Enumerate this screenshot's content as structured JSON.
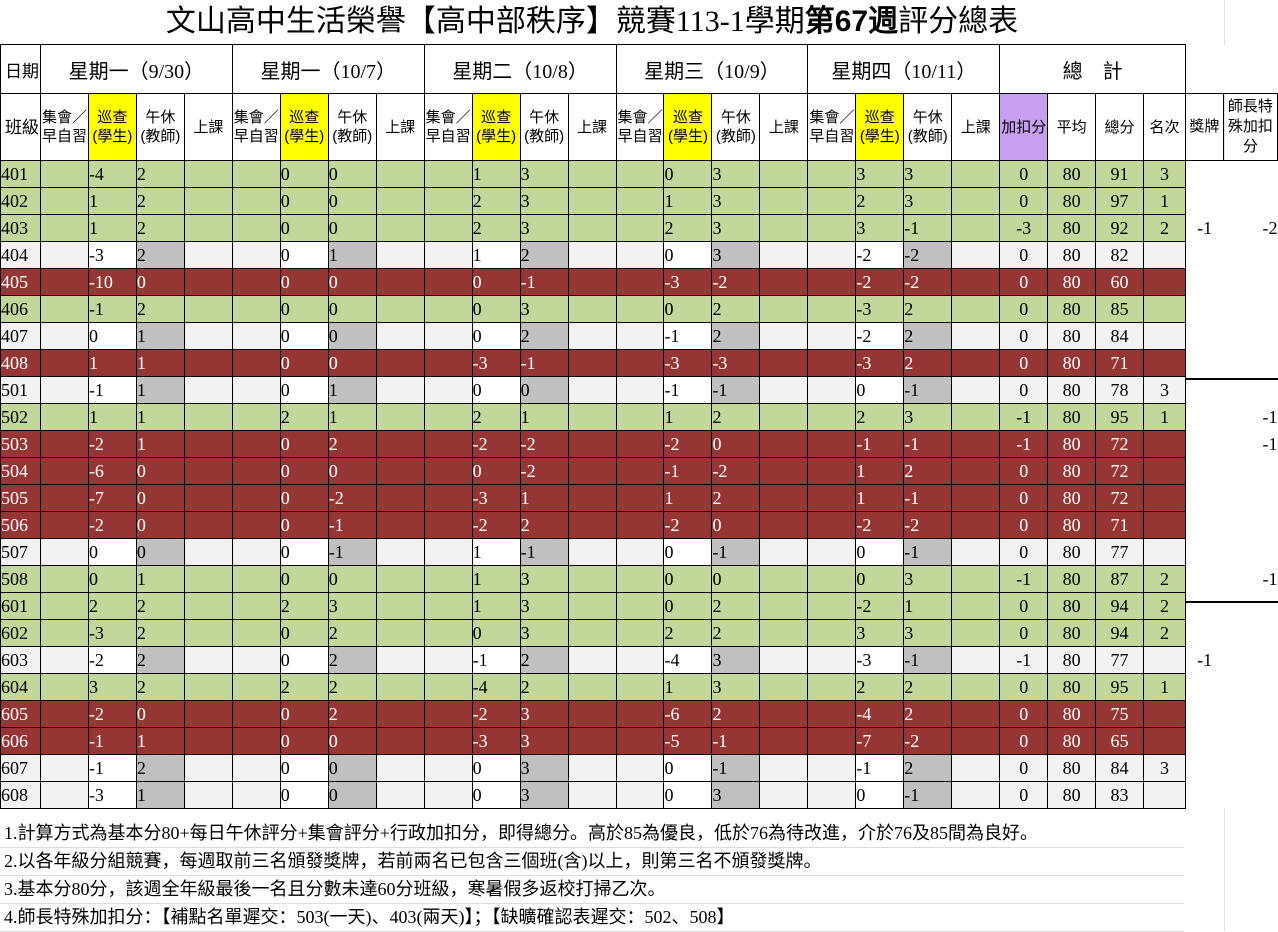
{
  "title": {
    "prefix": "文山高中生活榮譽【高中部秩序】競賽113-1學期",
    "bold": "第67週",
    "suffix": "評分總表"
  },
  "header": {
    "date_label": "日期",
    "class_label": "班級",
    "days": [
      "星期一（9/30）",
      "星期一（10/7）",
      "星期二（10/8）",
      "星期三（10/9）",
      "星期四（10/11）"
    ],
    "total_label": "總　計",
    "sub_cols": [
      "集會／早自習",
      "巡查(學生)",
      "午休(教師)",
      "上課"
    ],
    "sum_cols": [
      "加扣分",
      "平均",
      "總分",
      "名次"
    ],
    "extra_cols": [
      "獎牌",
      "師長特殊加扣分"
    ]
  },
  "colors": {
    "green": "#c4d79b",
    "red": "#963634",
    "light": "#f2f2f2",
    "gray": "#c0c0c0",
    "yellow": "#ffff00",
    "purple": "#c79ef0"
  },
  "rows": [
    {
      "cls": "401",
      "color": "G",
      "d": [
        [
          "-4",
          "2"
        ],
        [
          "0",
          "0"
        ],
        [
          "1",
          "3"
        ],
        [
          "0",
          "3"
        ],
        [
          "3",
          "3"
        ]
      ],
      "adj": "0",
      "avg": "80",
      "total": "91",
      "rank": "3",
      "medal": "",
      "special": ""
    },
    {
      "cls": "402",
      "color": "G",
      "d": [
        [
          "1",
          "2"
        ],
        [
          "0",
          "0"
        ],
        [
          "2",
          "3"
        ],
        [
          "1",
          "3"
        ],
        [
          "2",
          "3"
        ]
      ],
      "adj": "0",
      "avg": "80",
      "total": "97",
      "rank": "1",
      "medal": "",
      "special": ""
    },
    {
      "cls": "403",
      "color": "G",
      "d": [
        [
          "1",
          "2"
        ],
        [
          "0",
          "0"
        ],
        [
          "2",
          "3"
        ],
        [
          "2",
          "3"
        ],
        [
          "3",
          "-1"
        ]
      ],
      "adj": "-3",
      "avg": "80",
      "total": "92",
      "rank": "2",
      "medal": "-1",
      "special": "-2"
    },
    {
      "cls": "404",
      "color": "W",
      "d": [
        [
          "-3",
          "2"
        ],
        [
          "0",
          "1"
        ],
        [
          "1",
          "2"
        ],
        [
          "0",
          "3"
        ],
        [
          "-2",
          "-2"
        ]
      ],
      "adj": "0",
      "avg": "80",
      "total": "82",
      "rank": "",
      "medal": "",
      "special": ""
    },
    {
      "cls": "405",
      "color": "R",
      "d": [
        [
          "-10",
          "0"
        ],
        [
          "0",
          "0"
        ],
        [
          "0",
          "-1"
        ],
        [
          "-3",
          "-2"
        ],
        [
          "-2",
          "-2"
        ]
      ],
      "adj": "0",
      "avg": "80",
      "total": "60",
      "rank": "",
      "medal": "",
      "special": ""
    },
    {
      "cls": "406",
      "color": "G",
      "d": [
        [
          "-1",
          "2"
        ],
        [
          "0",
          "0"
        ],
        [
          "0",
          "3"
        ],
        [
          "0",
          "2"
        ],
        [
          "-3",
          "2"
        ]
      ],
      "adj": "0",
      "avg": "80",
      "total": "85",
      "rank": "",
      "medal": "",
      "special": ""
    },
    {
      "cls": "407",
      "color": "W",
      "d": [
        [
          "0",
          "1"
        ],
        [
          "0",
          "0"
        ],
        [
          "0",
          "2"
        ],
        [
          "-1",
          "2"
        ],
        [
          "-2",
          "2"
        ]
      ],
      "adj": "0",
      "avg": "80",
      "total": "84",
      "rank": "",
      "medal": "",
      "special": ""
    },
    {
      "cls": "408",
      "color": "R",
      "d": [
        [
          "1",
          "1"
        ],
        [
          "0",
          "0"
        ],
        [
          "-3",
          "-1"
        ],
        [
          "-3",
          "-3"
        ],
        [
          "-3",
          "2"
        ]
      ],
      "adj": "0",
      "avg": "80",
      "total": "71",
      "rank": "",
      "medal": "",
      "special": ""
    },
    {
      "cls": "501",
      "color": "W",
      "d": [
        [
          "-1",
          "1"
        ],
        [
          "0",
          "1"
        ],
        [
          "0",
          "0"
        ],
        [
          "-1",
          "-1"
        ],
        [
          "0",
          "-1"
        ]
      ],
      "adj": "0",
      "avg": "80",
      "total": "78",
      "rank": "3",
      "medal": "",
      "special": ""
    },
    {
      "cls": "502",
      "color": "G",
      "d": [
        [
          "1",
          "1"
        ],
        [
          "2",
          "1"
        ],
        [
          "2",
          "1"
        ],
        [
          "1",
          "2"
        ],
        [
          "2",
          "3"
        ]
      ],
      "adj": "-1",
      "avg": "80",
      "total": "95",
      "rank": "1",
      "medal": "",
      "special": "-1"
    },
    {
      "cls": "503",
      "color": "R",
      "d": [
        [
          "-2",
          "1"
        ],
        [
          "0",
          "2"
        ],
        [
          "-2",
          "-2"
        ],
        [
          "-2",
          "0"
        ],
        [
          "-1",
          "-1"
        ]
      ],
      "adj": "-1",
      "avg": "80",
      "total": "72",
      "rank": "",
      "medal": "",
      "special": "-1"
    },
    {
      "cls": "504",
      "color": "R",
      "d": [
        [
          "-6",
          "0"
        ],
        [
          "0",
          "0"
        ],
        [
          "0",
          "-2"
        ],
        [
          "-1",
          "-2"
        ],
        [
          "1",
          "2"
        ]
      ],
      "adj": "0",
      "avg": "80",
      "total": "72",
      "rank": "",
      "medal": "",
      "special": ""
    },
    {
      "cls": "505",
      "color": "R",
      "d": [
        [
          "-7",
          "0"
        ],
        [
          "0",
          "-2"
        ],
        [
          "-3",
          "1"
        ],
        [
          "1",
          "2"
        ],
        [
          "1",
          "-1"
        ]
      ],
      "adj": "0",
      "avg": "80",
      "total": "72",
      "rank": "",
      "medal": "",
      "special": ""
    },
    {
      "cls": "506",
      "color": "R",
      "d": [
        [
          "-2",
          "0"
        ],
        [
          "0",
          "-1"
        ],
        [
          "-2",
          "2"
        ],
        [
          "-2",
          "0"
        ],
        [
          "-2",
          "-2"
        ]
      ],
      "adj": "0",
      "avg": "80",
      "total": "71",
      "rank": "",
      "medal": "",
      "special": ""
    },
    {
      "cls": "507",
      "color": "W",
      "d": [
        [
          "0",
          "0"
        ],
        [
          "0",
          "-1"
        ],
        [
          "1",
          "-1"
        ],
        [
          "0",
          "-1"
        ],
        [
          "0",
          "-1"
        ]
      ],
      "adj": "0",
      "avg": "80",
      "total": "77",
      "rank": "",
      "medal": "",
      "special": ""
    },
    {
      "cls": "508",
      "color": "G",
      "d": [
        [
          "0",
          "1"
        ],
        [
          "0",
          "0"
        ],
        [
          "1",
          "3"
        ],
        [
          "0",
          "0"
        ],
        [
          "0",
          "3"
        ]
      ],
      "adj": "-1",
      "avg": "80",
      "total": "87",
      "rank": "2",
      "medal": "",
      "special": "-1"
    },
    {
      "cls": "601",
      "color": "G",
      "d": [
        [
          "2",
          "2"
        ],
        [
          "2",
          "3"
        ],
        [
          "1",
          "3"
        ],
        [
          "0",
          "2"
        ],
        [
          "-2",
          "1"
        ]
      ],
      "adj": "0",
      "avg": "80",
      "total": "94",
      "rank": "2",
      "medal": "",
      "special": ""
    },
    {
      "cls": "602",
      "color": "G",
      "d": [
        [
          "-3",
          "2"
        ],
        [
          "0",
          "2"
        ],
        [
          "0",
          "3"
        ],
        [
          "2",
          "2"
        ],
        [
          "3",
          "3"
        ]
      ],
      "adj": "0",
      "avg": "80",
      "total": "94",
      "rank": "2",
      "medal": "",
      "special": ""
    },
    {
      "cls": "603",
      "color": "W",
      "d": [
        [
          "-2",
          "2"
        ],
        [
          "0",
          "2"
        ],
        [
          "-1",
          "2"
        ],
        [
          "-4",
          "3"
        ],
        [
          "-3",
          "-1"
        ]
      ],
      "adj": "-1",
      "avg": "80",
      "total": "77",
      "rank": "",
      "medal": "-1",
      "special": ""
    },
    {
      "cls": "604",
      "color": "G",
      "d": [
        [
          "3",
          "2"
        ],
        [
          "2",
          "2"
        ],
        [
          "-4",
          "2"
        ],
        [
          "1",
          "3"
        ],
        [
          "2",
          "2"
        ]
      ],
      "adj": "0",
      "avg": "80",
      "total": "95",
      "rank": "1",
      "medal": "",
      "special": ""
    },
    {
      "cls": "605",
      "color": "R",
      "d": [
        [
          "-2",
          "0"
        ],
        [
          "0",
          "2"
        ],
        [
          "-2",
          "3"
        ],
        [
          "-6",
          "2"
        ],
        [
          "-4",
          "2"
        ]
      ],
      "adj": "0",
      "avg": "80",
      "total": "75",
      "rank": "",
      "medal": "",
      "special": ""
    },
    {
      "cls": "606",
      "color": "R",
      "d": [
        [
          "-1",
          "1"
        ],
        [
          "0",
          "0"
        ],
        [
          "-3",
          "3"
        ],
        [
          "-5",
          "-1"
        ],
        [
          "-7",
          "-2"
        ]
      ],
      "adj": "0",
      "avg": "80",
      "total": "65",
      "rank": "",
      "medal": "",
      "special": ""
    },
    {
      "cls": "607",
      "color": "W",
      "d": [
        [
          "-1",
          "2"
        ],
        [
          "0",
          "0"
        ],
        [
          "0",
          "3"
        ],
        [
          "0",
          "-1"
        ],
        [
          "-1",
          "2"
        ]
      ],
      "adj": "0",
      "avg": "80",
      "total": "84",
      "rank": "3",
      "medal": "",
      "special": ""
    },
    {
      "cls": "608",
      "color": "W",
      "d": [
        [
          "-3",
          "1"
        ],
        [
          "0",
          "0"
        ],
        [
          "0",
          "3"
        ],
        [
          "0",
          "3"
        ],
        [
          "0",
          "-1"
        ]
      ],
      "adj": "0",
      "avg": "80",
      "total": "83",
      "rank": "",
      "medal": "",
      "special": ""
    }
  ],
  "notes": [
    "1.計算方式為基本分80+每日午休評分+集會評分+行政加扣分，即得總分。高於85為優良，低於76為待改進，介於76及85間為良好。",
    "2.以各年級分組競賽，每週取前三名頒發獎牌，若前兩名已包含三個班(含)以上，則第三名不頒發獎牌。",
    "3.基本分80分，該週全年級最後一名且分數未達60分班級，寒暑假多返校打掃乙次。",
    "4.師長特殊加扣分：【補點名單遲交：503(一天)、403(兩天)】；【缺曠確認表遲交：502、508】"
  ]
}
